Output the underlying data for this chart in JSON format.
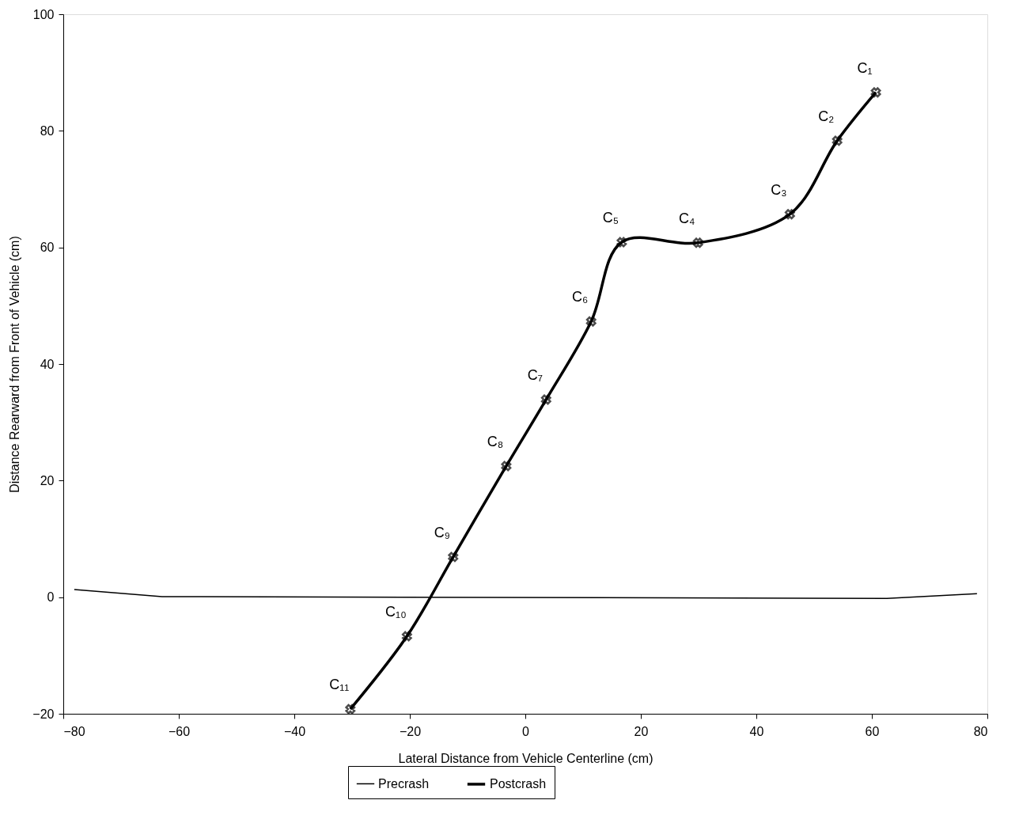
{
  "chart_data": {
    "type": "line",
    "xlabel": "Lateral Distance from Vehicle Centerline (cm)",
    "ylabel": "Distance Rearward from Front of Vehicle (cm)",
    "xlim": [
      -80,
      80
    ],
    "xticks": [
      -80,
      -60,
      -40,
      -20,
      0,
      20,
      40,
      60,
      80
    ],
    "ylim": [
      -20,
      100
    ],
    "yticks": [
      -20,
      0,
      20,
      40,
      60,
      80,
      100
    ],
    "grid": false,
    "legend": "bottom",
    "series": [
      {
        "name": "Precrash",
        "color": "#000000",
        "marker": "none",
        "x": [
          -78.1,
          -62.9,
          62.6,
          78.2
        ],
        "values": [
          1.3,
          0.1,
          -0.2,
          0.6
        ]
      },
      {
        "name": "Postcrash",
        "color": "#000000",
        "marker": "cross",
        "x": [
          60.7,
          54.0,
          45.8,
          29.9,
          16.7,
          11.4,
          3.6,
          -3.3,
          -12.5,
          -20.5,
          -30.3
        ],
        "values": [
          86.6,
          78.3,
          65.7,
          60.8,
          60.9,
          47.3,
          33.9,
          22.5,
          6.9,
          -6.7,
          -19.2
        ]
      }
    ],
    "annotations": [
      {
        "text": "C₁",
        "x": 60.7,
        "y": 86.6
      },
      {
        "text": "C₂",
        "x": 54.0,
        "y": 78.3
      },
      {
        "text": "C₃",
        "x": 45.8,
        "y": 65.7
      },
      {
        "text": "C₄",
        "x": 29.9,
        "y": 60.8
      },
      {
        "text": "C₅",
        "x": 16.7,
        "y": 60.9
      },
      {
        "text": "C₆",
        "x": 11.4,
        "y": 47.3
      },
      {
        "text": "C₇",
        "x": 3.6,
        "y": 33.9
      },
      {
        "text": "C₈",
        "x": -3.3,
        "y": 22.5
      },
      {
        "text": "C₉",
        "x": -12.5,
        "y": 6.9
      },
      {
        "text": "C₁₀",
        "x": -20.5,
        "y": -6.7
      },
      {
        "text": "C₁₁",
        "x": -30.3,
        "y": -19.2
      }
    ]
  }
}
